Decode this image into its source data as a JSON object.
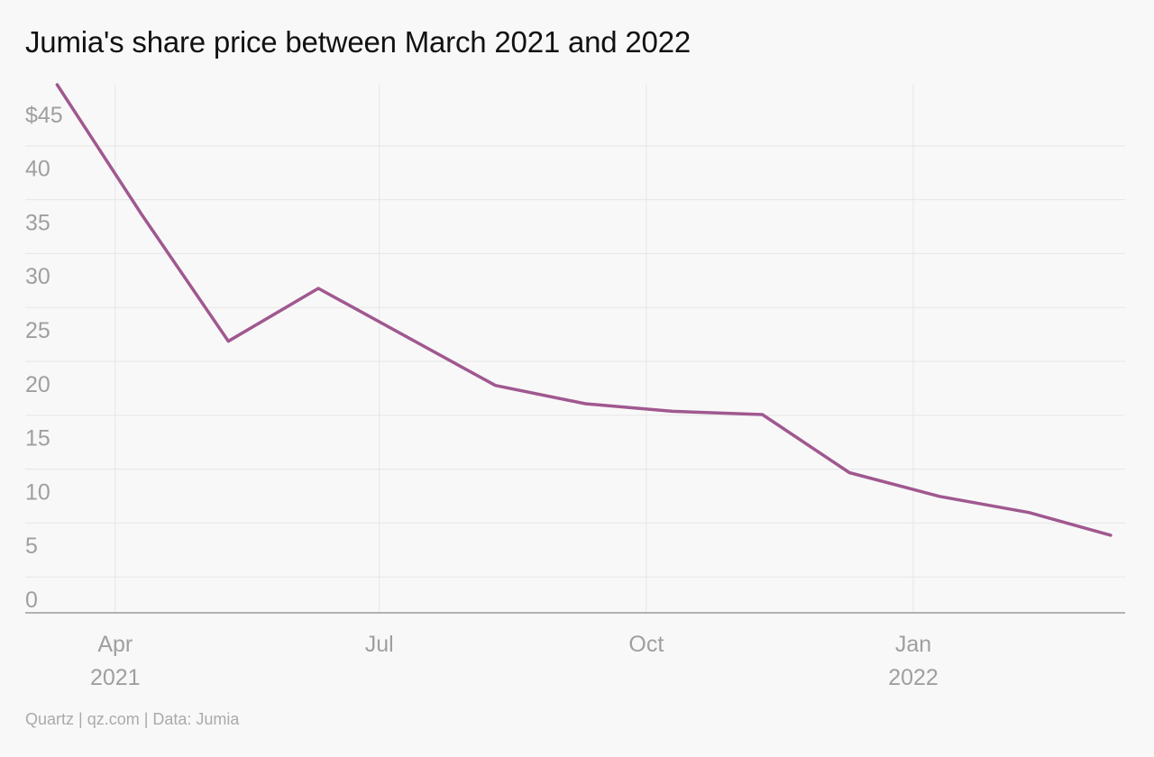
{
  "title": "Jumia's share price between March 2021 and 2022",
  "footer": "Quartz | qz.com | Data: Jumia",
  "colors": {
    "line": "#a0588f",
    "grid": "#e6e6e6",
    "axis": "#9a9a9a",
    "tick_text": "#9f9f9f",
    "background": "#f8f8f8"
  },
  "chart_data": {
    "type": "line",
    "title": "Jumia's share price between March 2021 and 2022",
    "xlabel": "",
    "ylabel": "",
    "ylim": [
      0,
      49
    ],
    "xlim": [
      "2021-03-01",
      "2022-03-15"
    ],
    "y_ticks": [
      {
        "value": 45,
        "label": "$45"
      },
      {
        "value": 40,
        "label": "40"
      },
      {
        "value": 35,
        "label": "35"
      },
      {
        "value": 30,
        "label": "30"
      },
      {
        "value": 25,
        "label": "25"
      },
      {
        "value": 20,
        "label": "20"
      },
      {
        "value": 15,
        "label": "15"
      },
      {
        "value": 10,
        "label": "10"
      },
      {
        "value": 5,
        "label": "5"
      },
      {
        "value": 0,
        "label": "0"
      }
    ],
    "x_ticks": [
      {
        "date": "2021-04-01",
        "label": "Apr",
        "sublabel": "2021"
      },
      {
        "date": "2021-07-01",
        "label": "Jul",
        "sublabel": ""
      },
      {
        "date": "2021-10-01",
        "label": "Oct",
        "sublabel": ""
      },
      {
        "date": "2022-01-01",
        "label": "Jan",
        "sublabel": "2022"
      }
    ],
    "grid": true,
    "series": [
      {
        "points": [
          {
            "date": "2021-03-12",
            "value": 49.0
          },
          {
            "date": "2021-04-10",
            "value": 37.0
          },
          {
            "date": "2021-05-10",
            "value": 25.2
          },
          {
            "date": "2021-06-10",
            "value": 30.1
          },
          {
            "date": "2021-08-10",
            "value": 21.1
          },
          {
            "date": "2021-09-10",
            "value": 19.4
          },
          {
            "date": "2021-10-10",
            "value": 18.7
          },
          {
            "date": "2021-11-10",
            "value": 18.4
          },
          {
            "date": "2021-12-10",
            "value": 13.0
          },
          {
            "date": "2022-01-10",
            "value": 10.8
          },
          {
            "date": "2022-02-10",
            "value": 9.3
          },
          {
            "date": "2022-03-10",
            "value": 7.2
          }
        ]
      }
    ]
  }
}
